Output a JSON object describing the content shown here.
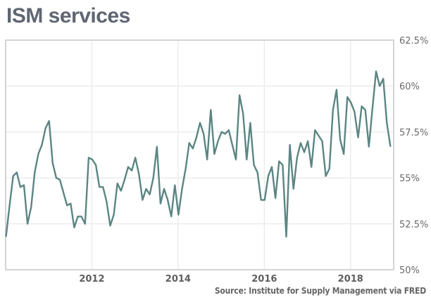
{
  "chart_data": {
    "type": "line",
    "title": "ISM services",
    "source": "Source: Institute for Supply Management via FRED",
    "xlabel": "",
    "ylabel": "",
    "x_start": "2010-01",
    "x_end": "2018-12",
    "frequency": "monthly",
    "xlim": [
      2010.0,
      2019.0
    ],
    "ylim": [
      50,
      62.5
    ],
    "grid": true,
    "legend": "none",
    "line_color": "#5b8583",
    "x_ticks": [
      {
        "value": 2012,
        "label": "2012"
      },
      {
        "value": 2014,
        "label": "2014"
      },
      {
        "value": 2016,
        "label": "2016"
      },
      {
        "value": 2018,
        "label": "2018"
      }
    ],
    "y_ticks": [
      {
        "value": 50,
        "label": "50%"
      },
      {
        "value": 52.5,
        "label": "52.5%"
      },
      {
        "value": 55,
        "label": "55%"
      },
      {
        "value": 57.5,
        "label": "57.5%"
      },
      {
        "value": 60,
        "label": "60%"
      },
      {
        "value": 62.5,
        "label": "62.5%"
      }
    ],
    "series": [
      {
        "name": "ISM services",
        "values": [
          51.8,
          53.5,
          55.1,
          55.3,
          54.5,
          54.6,
          52.5,
          53.4,
          55.3,
          56.3,
          56.8,
          57.7,
          58.1,
          55.8,
          55.0,
          54.9,
          54.2,
          53.5,
          53.6,
          52.3,
          52.9,
          52.9,
          52.5,
          56.1,
          56.0,
          55.7,
          54.5,
          54.5,
          53.7,
          52.4,
          53.0,
          54.7,
          54.3,
          54.9,
          55.6,
          55.4,
          56.1,
          55.2,
          53.8,
          54.4,
          54.1,
          55.0,
          56.7,
          53.6,
          54.4,
          53.8,
          52.9,
          54.6,
          53.0,
          54.4,
          55.5,
          56.9,
          56.6,
          57.2,
          58.0,
          57.4,
          56.0,
          58.7,
          56.3,
          57.0,
          57.5,
          57.4,
          57.6,
          56.8,
          56.0,
          59.5,
          58.5,
          56.0,
          58.0,
          55.7,
          55.3,
          53.8,
          53.8,
          55.1,
          55.6,
          53.9,
          55.9,
          55.7,
          51.8,
          56.8,
          54.4,
          56.1,
          56.9,
          56.4,
          57.0,
          55.6,
          57.6,
          57.3,
          57.0,
          55.1,
          55.5,
          58.7,
          59.8,
          57.1,
          56.3,
          59.4,
          59.1,
          58.6,
          57.2,
          58.9,
          58.7,
          56.7,
          58.8,
          60.8,
          60.0,
          60.4,
          58.0,
          56.7
        ]
      }
    ]
  }
}
